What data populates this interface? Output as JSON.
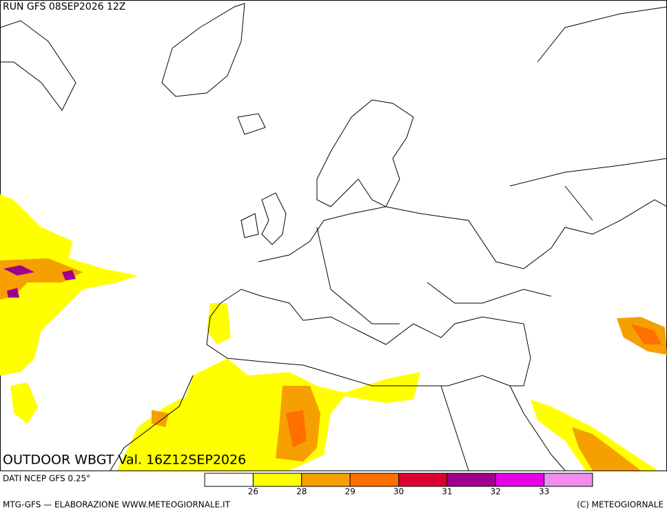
{
  "header": {
    "run": "RUN GFS 08SEP2026 12Z"
  },
  "map": {
    "product": "OUTDOOR WBGT Val. 16Z12SEP2026"
  },
  "legend": {
    "source": "DATI NCEP GFS 0.25°",
    "colors": [
      "#ffffff",
      "#ffff00",
      "#f5a000",
      "#ff7000",
      "#dc0032",
      "#a0008c",
      "#e600e6",
      "#f08cf0"
    ],
    "ticks": [
      26,
      28,
      29,
      30,
      31,
      32,
      33
    ]
  },
  "footer": {
    "left": "MTG-GFS — ELABORAZIONE WWW.METEOGIORNALE.IT",
    "right": "(C) METEOGIORNALE"
  }
}
